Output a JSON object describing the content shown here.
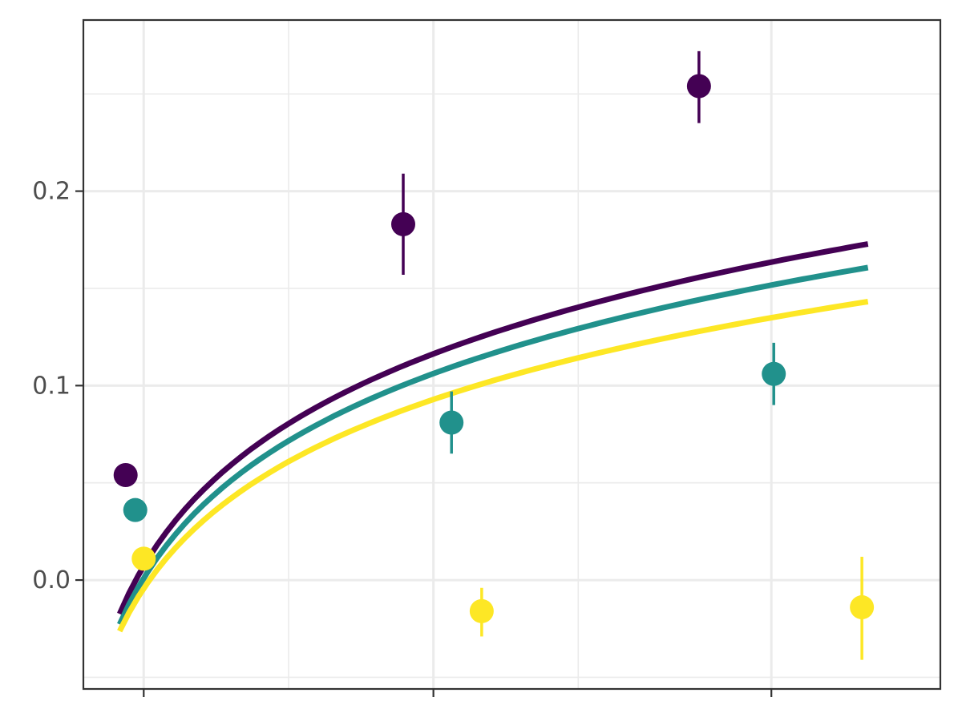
{
  "chart_data": {
    "type": "scatter",
    "title": "",
    "xlabel": "",
    "ylabel": "",
    "xlim": [
      0.2,
      7.3
    ],
    "ylim": [
      -0.056,
      0.288
    ],
    "x_major_ticks": [
      0.7,
      3.1,
      5.9
    ],
    "x_minor_ticks": [
      1.9,
      4.3
    ],
    "y_major_ticks": [
      0.0,
      0.1,
      0.2
    ],
    "y_minor_ticks": [
      -0.05,
      0.05,
      0.15,
      0.25
    ],
    "y_tick_labels": [
      "0.0",
      "0.1",
      "0.2"
    ],
    "grid": true,
    "legend": "none",
    "series": [
      {
        "color": "#440154",
        "points": [
          {
            "x": 0.55,
            "y": 0.054,
            "lo": null,
            "hi": null
          },
          {
            "x": 2.85,
            "y": 0.183,
            "lo": 0.157,
            "hi": 0.209
          },
          {
            "x": 5.3,
            "y": 0.254,
            "lo": 0.235,
            "hi": 0.272
          }
        ],
        "fit": {
          "a": 0.0334,
          "b": 0.0733
        }
      },
      {
        "color": "#21918c",
        "points": [
          {
            "x": 0.63,
            "y": 0.036,
            "lo": null,
            "hi": null
          },
          {
            "x": 3.25,
            "y": 0.081,
            "lo": 0.065,
            "hi": 0.097
          },
          {
            "x": 5.92,
            "y": 0.106,
            "lo": 0.09,
            "hi": 0.122
          }
        ],
        "fit": {
          "a": 0.0262,
          "b": 0.0707
        }
      },
      {
        "color": "#fde725",
        "points": [
          {
            "x": 0.7,
            "y": 0.011,
            "lo": null,
            "hi": null
          },
          {
            "x": 3.5,
            "y": -0.016,
            "lo": -0.029,
            "hi": -0.004
          },
          {
            "x": 6.65,
            "y": -0.014,
            "lo": -0.041,
            "hi": 0.012
          }
        ],
        "fit": {
          "a": 0.019,
          "b": 0.0653
        }
      }
    ],
    "fit_x_range": [
      0.5,
      6.7
    ]
  }
}
